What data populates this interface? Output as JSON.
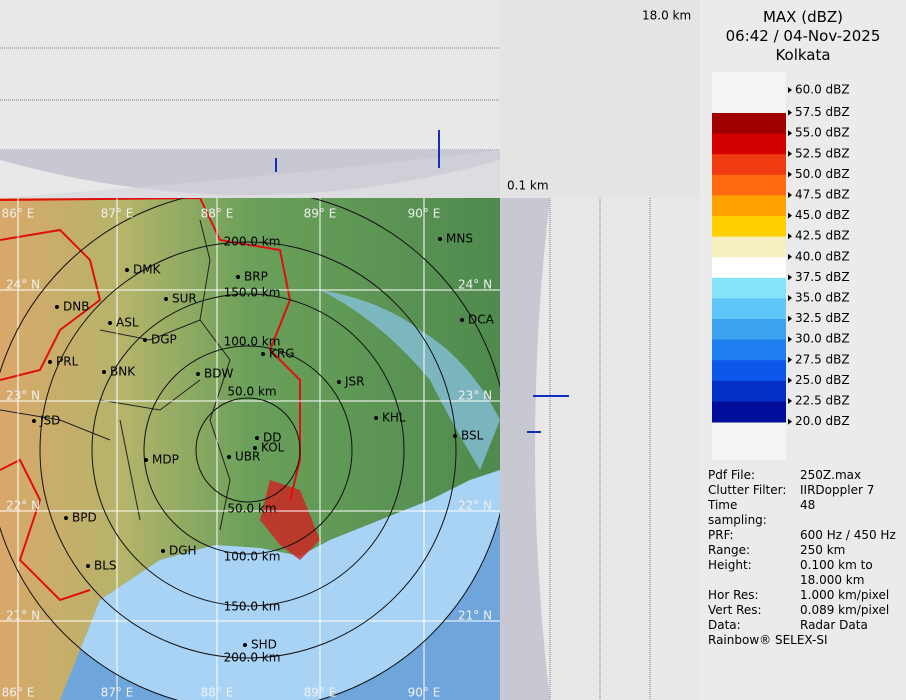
{
  "profile": {
    "top_height": "18.0 km",
    "bottom_height": "0.1 km"
  },
  "header": {
    "title": "MAX (dBZ)",
    "datetime": "06:42 / 04-Nov-2025",
    "station": "Kolkata"
  },
  "legend": {
    "labels": [
      "60.0 dBZ",
      "57.5 dBZ",
      "55.0 dBZ",
      "52.5 dBZ",
      "50.0 dBZ",
      "47.5 dBZ",
      "45.0 dBZ",
      "42.5 dBZ",
      "40.0 dBZ",
      "37.5 dBZ",
      "35.0 dBZ",
      "32.5 dBZ",
      "30.0 dBZ",
      "27.5 dBZ",
      "25.0 dBZ",
      "22.5 dBZ",
      "20.0 dBZ"
    ],
    "colors": [
      "#a00000",
      "#d40000",
      "#f03a10",
      "#ff6a10",
      "#ffa200",
      "#ffd000",
      "#f6efbf",
      "#ffffff",
      "#86e4fa",
      "#5ec6f8",
      "#3aa4f0",
      "#1f7ef0",
      "#0c58ea",
      "#0530c8",
      "#000c9a"
    ]
  },
  "map": {
    "longitudes": [
      "86° E",
      "87° E",
      "88° E",
      "89° E",
      "90° E"
    ],
    "latitudes": [
      "24° N",
      "23° N",
      "22° N",
      "21° N"
    ],
    "rings": [
      "50.0 km",
      "100.0 km",
      "150.0 km",
      "200.0 km"
    ],
    "cities": [
      "MNS",
      "DMK",
      "BRP",
      "DCA",
      "DNB",
      "SUR",
      "ASL",
      "DGP",
      "KRG",
      "PRL",
      "BNK",
      "BDW",
      "JSR",
      "KHL",
      "JSD",
      "DD",
      "BSL",
      "KOL",
      "MDP",
      "UBR",
      "BPD",
      "DGH",
      "BLS",
      "SHD"
    ]
  },
  "info": {
    "rows": [
      [
        "Pdf File:",
        "250Z.max"
      ],
      [
        "Clutter Filter:",
        "IIRDoppler 7"
      ],
      [
        "Time sampling:",
        "48"
      ],
      [
        "PRF:",
        "600 Hz / 450 Hz"
      ],
      [
        "Range:",
        "250 km"
      ],
      [
        "Height:",
        "0.100 km to 18.000 km"
      ],
      [
        "Hor Res:",
        "1.000 km/pixel"
      ],
      [
        "Vert Res:",
        "0.089 km/pixel"
      ],
      [
        "Data:",
        "Radar Data"
      ]
    ],
    "footer": "Rainbow® SELEX-SI"
  }
}
